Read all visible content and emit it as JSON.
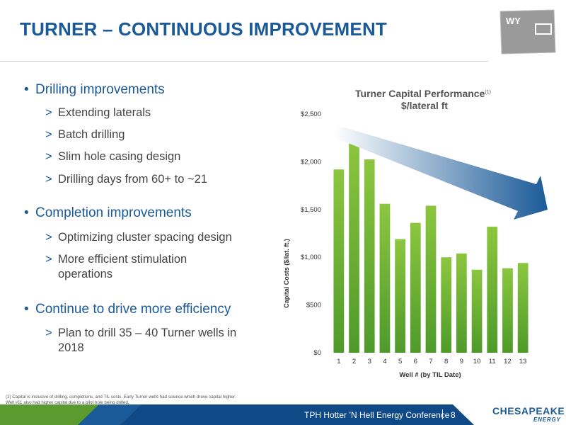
{
  "slide": {
    "title": "TURNER – CONTINUOUS IMPROVEMENT",
    "state_label": "WY",
    "footer_text": "TPH Hotter ’N Hell Energy Conference",
    "page_number": "8",
    "logo_main": "CHESAPEAKE",
    "logo_sub": "ENERGY"
  },
  "bullets": [
    {
      "label": "Drilling improvements",
      "subs": [
        "Extending laterals",
        "Batch drilling",
        "Slim hole casing design",
        "Drilling days from 60+ to ~21"
      ]
    },
    {
      "label": "Completion improvements",
      "subs": [
        "Optimizing cluster spacing design",
        "More efficient stimulation operations"
      ]
    },
    {
      "label": "Continue to drive more efficiency",
      "subs": [
        "Plan to drill 35 – 40 Turner wells in 2018"
      ]
    }
  ],
  "footnote": {
    "line1": "(1) Capital is inclusive of drilling, completions, and TIL costs. Early Turner wells had science which drove capital higher.",
    "line2": "Well #11 also had higher capital due to a pilot hole being drilled."
  },
  "chart_data": {
    "type": "bar",
    "title": "Turner Capital Performance",
    "title_superscript": "(1)",
    "subtitle": "$/lateral ft",
    "xlabel": "Well # (by TIL Date)",
    "ylabel": "Capital Costs ($/lat. ft.)",
    "categories": [
      "1",
      "2",
      "3",
      "4",
      "5",
      "6",
      "7",
      "8",
      "9",
      "10",
      "11",
      "12",
      "13"
    ],
    "values": [
      1920,
      2230,
      2025,
      1560,
      1190,
      1360,
      1540,
      1000,
      1040,
      870,
      1320,
      885,
      940
    ],
    "ylim": [
      0,
      2500
    ],
    "yticks": [
      "$0",
      "$500",
      "$1,000",
      "$1,500",
      "$2,000",
      "$2,500"
    ],
    "ytick_values": [
      0,
      500,
      1000,
      1500,
      2000,
      2500
    ],
    "grid": false,
    "bar_color": "#6db33f",
    "trend_arrow_color": "#1b5a98"
  },
  "colors": {
    "brand_blue": "#1b5a98",
    "footer_blue": "#0f4a86",
    "accent_green": "#6db33f"
  },
  "icons": [
    "bullet-dot",
    "caret-right-icon",
    "trend-arrow-icon",
    "wyoming-map-icon"
  ]
}
